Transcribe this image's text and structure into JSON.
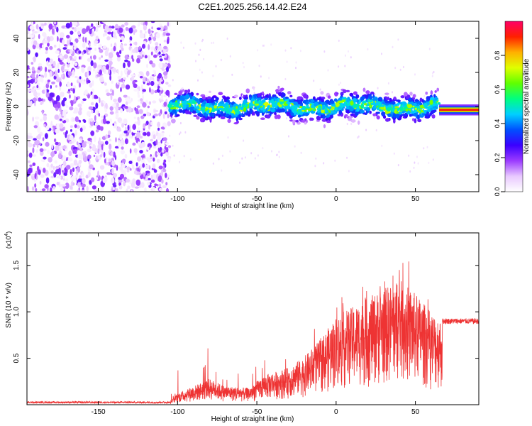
{
  "title": "C2E1.2025.256.14.42.E24",
  "chart_data": [
    {
      "type": "heatmap",
      "name": "spectrogram",
      "xlabel": "Height of straight line (km)",
      "ylabel": "Frequency (Hz)",
      "xlim": [
        -195,
        90
      ],
      "ylim": [
        -50,
        50
      ],
      "xticks": [
        -150,
        -100,
        -50,
        0,
        50
      ],
      "yticks": [
        -40,
        -20,
        0,
        20,
        40
      ],
      "colorbar": {
        "label": "Normalized spectral amplitude",
        "range": [
          0,
          1
        ],
        "ticks": [
          0.0,
          0.2,
          0.4,
          0.6,
          0.8
        ],
        "colors": [
          "#ffffff",
          "#e8c8ff",
          "#9b3bff",
          "#3a00ff",
          "#0050ff",
          "#00d0ff",
          "#00ff80",
          "#60ff00",
          "#e0ff00",
          "#ffb000",
          "#ff2000",
          "#ff0066"
        ]
      },
      "regions": [
        {
          "x": [
            -195,
            -105
          ],
          "pattern": "speckle",
          "ylim": [
            -50,
            50
          ]
        },
        {
          "x": [
            -105,
            65
          ],
          "pattern": "band",
          "center_freq": 0,
          "halfwidth": 8
        },
        {
          "x": [
            65,
            90
          ],
          "pattern": "carrier",
          "center_freq": -2,
          "halfwidth": 1.5
        }
      ]
    },
    {
      "type": "line",
      "name": "snr",
      "xlabel": "Height of straight line (km)",
      "ylabel": "SNR (10 * v/v)",
      "scale_label": "(x10",
      "scale_exponent": "4",
      "scale_close": ")",
      "xlim": [
        -195,
        90
      ],
      "ylim": [
        0,
        1.85
      ],
      "xticks": [
        -150,
        -100,
        -50,
        0,
        50
      ],
      "yticks": [
        0.5,
        1.0,
        1.5
      ],
      "color": "#ee3333",
      "envelope": [
        [
          -195,
          0.02
        ],
        [
          -105,
          0.03
        ],
        [
          -100,
          0.12
        ],
        [
          -80,
          0.28
        ],
        [
          -70,
          0.2
        ],
        [
          -55,
          0.18
        ],
        [
          -45,
          0.32
        ],
        [
          -30,
          0.4
        ],
        [
          -20,
          0.52
        ],
        [
          -10,
          0.7
        ],
        [
          0,
          0.95
        ],
        [
          10,
          1.05
        ],
        [
          30,
          1.25
        ],
        [
          40,
          1.35
        ],
        [
          50,
          1.2
        ],
        [
          60,
          1.0
        ],
        [
          65,
          0.95
        ],
        [
          67,
          0.9
        ],
        [
          90,
          0.9
        ]
      ]
    }
  ]
}
